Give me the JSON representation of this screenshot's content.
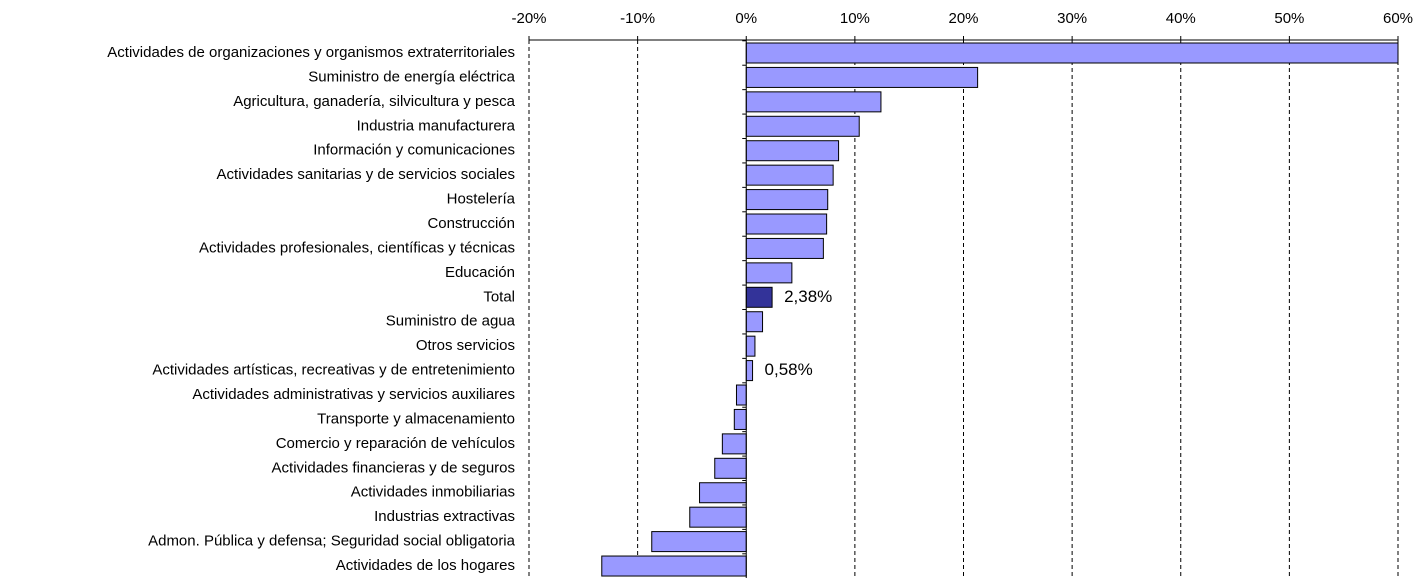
{
  "chart_data": {
    "type": "barh",
    "categories": [
      "Actividades de organizaciones y organismos extraterritoriales",
      "Suministro de energía eléctrica",
      "Agricultura, ganadería, silvicultura y pesca",
      "Industria manufacturera",
      "Información y comunicaciones",
      "Actividades sanitarias y de servicios sociales",
      "Hostelería",
      "Construcción",
      "Actividades profesionales, científicas y técnicas",
      "Educación",
      "Total",
      "Suministro de agua",
      "Otros servicios",
      "Actividades artísticas, recreativas y de entretenimiento",
      "Actividades administrativas y servicios auxiliares",
      "Transporte y almacenamiento",
      "Comercio y reparación de vehículos",
      "Actividades financieras y de seguros",
      "Actividades inmobiliarias",
      "Industrias extractivas",
      "Admon. Pública y defensa; Seguridad social obligatoria",
      "Actividades de los hogares"
    ],
    "values": [
      60,
      21.3,
      12.4,
      10.4,
      8.5,
      8.0,
      7.5,
      7.4,
      7.1,
      4.2,
      2.38,
      1.5,
      0.8,
      0.58,
      -0.9,
      -1.1,
      -2.2,
      -2.9,
      -4.3,
      -5.2,
      -8.7,
      -13.3
    ],
    "value_labels": [
      null,
      null,
      null,
      null,
      null,
      null,
      null,
      null,
      null,
      null,
      "2,38%",
      null,
      null,
      "0,58%",
      null,
      null,
      null,
      null,
      null,
      null,
      null,
      null
    ],
    "colors": [
      "#9999ff",
      "#9999ff",
      "#9999ff",
      "#9999ff",
      "#9999ff",
      "#9999ff",
      "#9999ff",
      "#9999ff",
      "#9999ff",
      "#9999ff",
      "#333399",
      "#9999ff",
      "#9999ff",
      "#9999ff",
      "#9999ff",
      "#9999ff",
      "#9999ff",
      "#9999ff",
      "#9999ff",
      "#9999ff",
      "#9999ff",
      "#9999ff"
    ],
    "xlim": [
      -20,
      60
    ],
    "xticks": [
      {
        "value": -20,
        "label": "-20%"
      },
      {
        "value": -10,
        "label": "-10%"
      },
      {
        "value": 0,
        "label": "0%"
      },
      {
        "value": 10,
        "label": "10%"
      },
      {
        "value": 20,
        "label": "20%"
      },
      {
        "value": 30,
        "label": "30%"
      },
      {
        "value": 40,
        "label": "40%"
      },
      {
        "value": 50,
        "label": "50%"
      },
      {
        "value": 60,
        "label": "60%"
      }
    ],
    "grid": true
  }
}
